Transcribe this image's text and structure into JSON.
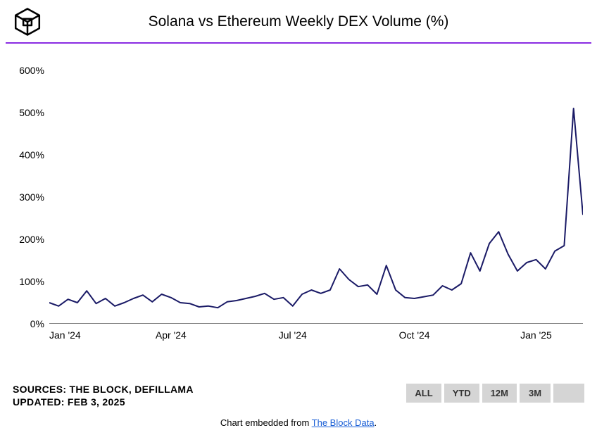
{
  "header": {
    "title": "Solana vs Ethereum Weekly DEX Volume (%)"
  },
  "chart": {
    "type": "line",
    "line_color": "#1a1a66",
    "line_width": 2,
    "divider_color": "#8a2be2",
    "background_color": "#ffffff",
    "ylim": [
      0,
      640
    ],
    "yticks": [
      0,
      100,
      200,
      300,
      400,
      500,
      600
    ],
    "ytick_labels": [
      "0%",
      "100%",
      "200%",
      "300%",
      "400%",
      "500%",
      "600%"
    ],
    "x_range_weeks": 58,
    "xticks_at_week": [
      0,
      13,
      26,
      39,
      52
    ],
    "xtick_labels": [
      "Jan '24",
      "Apr '24",
      "Jul '24",
      "Oct '24",
      "Jan '25"
    ],
    "values": [
      50,
      42,
      58,
      50,
      78,
      48,
      60,
      42,
      50,
      60,
      68,
      52,
      70,
      62,
      50,
      48,
      40,
      42,
      38,
      52,
      55,
      60,
      65,
      72,
      58,
      62,
      42,
      70,
      80,
      72,
      80,
      130,
      105,
      88,
      92,
      70,
      138,
      80,
      62,
      60,
      64,
      68,
      90,
      80,
      95,
      168,
      125,
      190,
      218,
      165,
      125,
      145,
      152,
      130,
      172,
      185,
      510,
      258
    ],
    "axis_fontsize": 14,
    "axis_color": "#000000"
  },
  "footer": {
    "sources_label": "SOURCES: THE BLOCK, DEFILLAMA",
    "updated_label": "UPDATED: FEB 3, 2025",
    "range_buttons": [
      "ALL",
      "YTD",
      "12M",
      "3M",
      ""
    ],
    "embed_prefix": "Chart embedded from ",
    "embed_link_text": "The Block Data",
    "embed_suffix": "."
  }
}
